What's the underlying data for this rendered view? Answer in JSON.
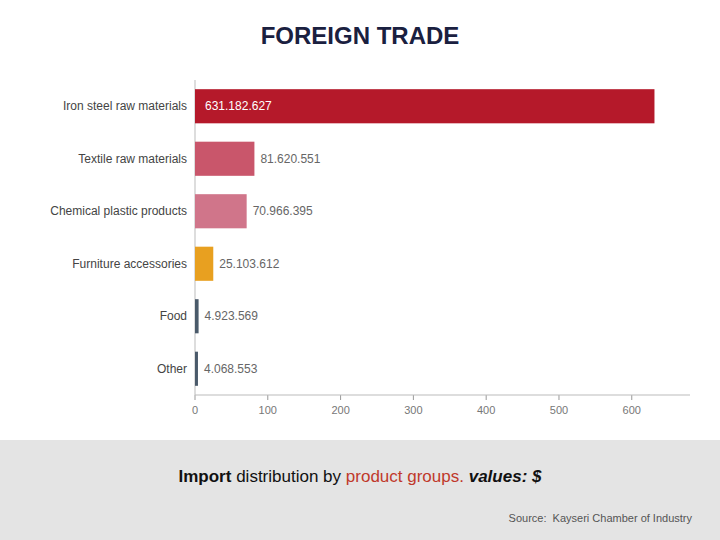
{
  "chart_data": {
    "type": "bar",
    "orientation": "horizontal",
    "title": "FOREIGN TRADE",
    "categories": [
      "Iron steel raw materials",
      "Textile raw materials",
      "Chemical plastic products",
      "Furniture accessories",
      "Food",
      "Other"
    ],
    "values": [
      631182627,
      81620551,
      70966395,
      25103612,
      4923569,
      4068553
    ],
    "value_labels": [
      "631.182.627",
      "81.620.551",
      "70.966.395",
      "25.103.612",
      "4.923.569",
      "4.068.553"
    ],
    "data_labels": true,
    "colors": [
      "#b5192a",
      "#c9566b",
      "#d0758a",
      "#e8a020",
      "#4a5a6a",
      "#4a5a6a"
    ],
    "xlim": [
      0,
      680000000
    ],
    "xticks": [
      0,
      {
        "value": 100000000,
        "label": "100"
      },
      {
        "value": 200000000,
        "label": "200"
      },
      {
        "value": 300000000,
        "label": "300"
      },
      {
        "value": 400000000,
        "label": "400"
      },
      {
        "value": 500000000,
        "label": "500"
      },
      {
        "value": 600000000,
        "label": "600"
      }
    ],
    "grid": false,
    "annotations": [
      "Import",
      "distribution by",
      "product groups.",
      "values: $",
      "Source:  Kayseri Chamber of Industry"
    ]
  }
}
